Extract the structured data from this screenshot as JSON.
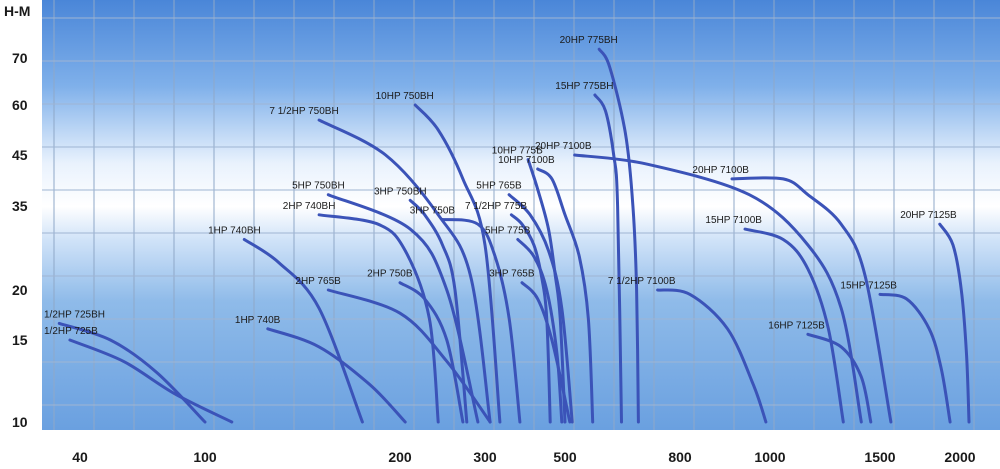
{
  "chart_data": {
    "type": "line",
    "ylabel": "H-M",
    "xlim": [
      34,
      2200
    ],
    "ylim": [
      9.5,
      80
    ],
    "x_scale": "log",
    "y_scale": "log",
    "grid": true,
    "x_ticks": [
      {
        "value": 40,
        "label": "40"
      },
      {
        "value": 100,
        "label": "100"
      },
      {
        "value": 200,
        "label": "200"
      },
      {
        "value": 300,
        "label": "300"
      },
      {
        "value": 500,
        "label": "500"
      },
      {
        "value": 800,
        "label": "800"
      },
      {
        "value": 1000,
        "label": "1000"
      },
      {
        "value": 1500,
        "label": "1500"
      },
      {
        "value": 2000,
        "label": "2000"
      }
    ],
    "y_ticks": [
      {
        "value": 10,
        "label": "10"
      },
      {
        "value": 15,
        "label": "15"
      },
      {
        "value": 20,
        "label": "20"
      },
      {
        "value": 35,
        "label": "35"
      },
      {
        "value": 45,
        "label": "45"
      },
      {
        "value": 60,
        "label": "60"
      },
      {
        "value": 70,
        "label": "70"
      }
    ],
    "series": [
      {
        "name": "1/2HP 725BH",
        "points": [
          [
            36,
            16.5
          ],
          [
            50,
            15
          ],
          [
            70,
            12.8
          ],
          [
            100,
            10
          ]
        ]
      },
      {
        "name": "1/2HP 725B",
        "points": [
          [
            38,
            15
          ],
          [
            55,
            13.5
          ],
          [
            80,
            11.5
          ],
          [
            110,
            10
          ]
        ]
      },
      {
        "name": "1HP 740BH",
        "points": [
          [
            115,
            28
          ],
          [
            130,
            24
          ],
          [
            150,
            18
          ],
          [
            175,
            10
          ]
        ]
      },
      {
        "name": "1HP 740B",
        "points": [
          [
            125,
            16
          ],
          [
            150,
            14.5
          ],
          [
            180,
            12
          ],
          [
            205,
            10
          ]
        ]
      },
      {
        "name": "2HP 765B",
        "points": [
          [
            155,
            20
          ],
          [
            200,
            17.5
          ],
          [
            250,
            13.5
          ],
          [
            310,
            10
          ]
        ]
      },
      {
        "name": "2HP 740BH",
        "points": [
          [
            150,
            33
          ],
          [
            185,
            31
          ],
          [
            205,
            26
          ],
          [
            230,
            17
          ],
          [
            240,
            10
          ]
        ]
      },
      {
        "name": "5HP 750BH",
        "points": [
          [
            155,
            37
          ],
          [
            210,
            30
          ],
          [
            250,
            20
          ],
          [
            290,
            10
          ]
        ]
      },
      {
        "name": "2HP 750B",
        "points": [
          [
            200,
            21
          ],
          [
            225,
            19
          ],
          [
            250,
            15
          ],
          [
            270,
            10
          ]
        ]
      },
      {
        "name": "3HP 750BH",
        "points": [
          [
            210,
            36
          ],
          [
            225,
            33
          ],
          [
            245,
            27
          ],
          [
            260,
            20
          ],
          [
            275,
            10
          ]
        ]
      },
      {
        "name": "3HP 750B",
        "points": [
          [
            245,
            32
          ],
          [
            290,
            31
          ],
          [
            320,
            25
          ],
          [
            350,
            17
          ],
          [
            375,
            10
          ]
        ]
      },
      {
        "name": "7 1/2HP 750BH",
        "points": [
          [
            150,
            55
          ],
          [
            190,
            45
          ],
          [
            240,
            33
          ],
          [
            280,
            22
          ],
          [
            310,
            10
          ]
        ]
      },
      {
        "name": "10HP 750BH",
        "points": [
          [
            215,
            60
          ],
          [
            240,
            52
          ],
          [
            270,
            40
          ],
          [
            300,
            27
          ],
          [
            330,
            10
          ]
        ]
      },
      {
        "name": "3HP 765B",
        "points": [
          [
            380,
            21
          ],
          [
            420,
            19
          ],
          [
            460,
            15
          ],
          [
            510,
            10
          ]
        ]
      },
      {
        "name": "5HP 775B",
        "points": [
          [
            370,
            28
          ],
          [
            410,
            25
          ],
          [
            445,
            20
          ],
          [
            475,
            14
          ],
          [
            490,
            10
          ]
        ]
      },
      {
        "name": "7 1/2HP 775B",
        "points": [
          [
            355,
            33
          ],
          [
            380,
            31
          ],
          [
            410,
            27
          ],
          [
            430,
            22
          ],
          [
            445,
            17
          ],
          [
            455,
            10
          ]
        ]
      },
      {
        "name": "5HP 765B",
        "points": [
          [
            350,
            37
          ],
          [
            400,
            33
          ],
          [
            450,
            26
          ],
          [
            490,
            18
          ],
          [
            515,
            10
          ]
        ]
      },
      {
        "name": "10HP 775B",
        "points": [
          [
            395,
            44
          ],
          [
            420,
            38
          ],
          [
            450,
            30
          ],
          [
            470,
            22
          ],
          [
            485,
            17
          ],
          [
            500,
            10
          ]
        ]
      },
      {
        "name": "10HP 7100B",
        "points": [
          [
            420,
            42
          ],
          [
            460,
            40
          ],
          [
            500,
            33
          ],
          [
            530,
            25
          ],
          [
            550,
            17
          ],
          [
            560,
            10
          ]
        ]
      },
      {
        "name": "15HP 775BH",
        "points": [
          [
            565,
            62
          ],
          [
            590,
            58
          ],
          [
            610,
            45
          ],
          [
            620,
            35
          ],
          [
            630,
            10
          ]
        ]
      },
      {
        "name": "20HP 775BH",
        "points": [
          [
            575,
            73
          ],
          [
            600,
            68
          ],
          [
            640,
            51
          ],
          [
            660,
            35
          ],
          [
            670,
            20
          ],
          [
            675,
            10
          ]
        ]
      },
      {
        "name": "7 1/2HP 7100B",
        "points": [
          [
            730,
            20
          ],
          [
            820,
            19.5
          ],
          [
            900,
            16
          ],
          [
            960,
            12
          ],
          [
            990,
            10
          ]
        ]
      },
      {
        "name": "15HP 7100B",
        "points": [
          [
            940,
            30
          ],
          [
            1050,
            28
          ],
          [
            1150,
            23
          ],
          [
            1240,
            16
          ],
          [
            1310,
            10
          ]
        ]
      },
      {
        "name": "15HP 7125B",
        "points": [
          [
            1500,
            19.5
          ],
          [
            1650,
            19
          ],
          [
            1790,
            16
          ],
          [
            1870,
            13
          ],
          [
            1930,
            10
          ]
        ]
      },
      {
        "name": "16HP 7125B",
        "points": [
          [
            1150,
            15.5
          ],
          [
            1300,
            14.5
          ],
          [
            1400,
            12.5
          ],
          [
            1450,
            10
          ]
        ]
      },
      {
        "name": "20HP 7100B",
        "points": [
          [
            520,
            45
          ],
          [
            700,
            43
          ],
          [
            950,
            37
          ],
          [
            1150,
            27
          ],
          [
            1300,
            18
          ],
          [
            1400,
            10
          ]
        ]
      },
      {
        "name": "20HP 7100B",
        "points": [
          [
            910,
            40
          ],
          [
            1050,
            40
          ],
          [
            1150,
            37
          ],
          [
            1300,
            31
          ],
          [
            1420,
            22
          ],
          [
            1560,
            10
          ]
        ]
      },
      {
        "name": "20HP 7125B",
        "points": [
          [
            1860,
            31
          ],
          [
            1950,
            27
          ],
          [
            2010,
            20
          ],
          [
            2050,
            14
          ],
          [
            2070,
            10
          ]
        ]
      }
    ]
  }
}
